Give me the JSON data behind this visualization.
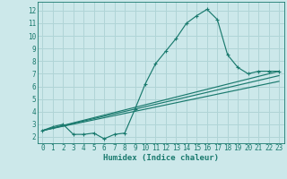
{
  "xlabel": "Humidex (Indice chaleur)",
  "bg_color": "#cce8ea",
  "grid_color": "#b0d4d6",
  "line_color": "#1a7a6e",
  "xlim": [
    -0.5,
    23.5
  ],
  "ylim": [
    1.5,
    12.7
  ],
  "xticks": [
    0,
    1,
    2,
    3,
    4,
    5,
    6,
    7,
    8,
    9,
    10,
    11,
    12,
    13,
    14,
    15,
    16,
    17,
    18,
    19,
    20,
    21,
    22,
    23
  ],
  "yticks": [
    2,
    3,
    4,
    5,
    6,
    7,
    8,
    9,
    10,
    11,
    12
  ],
  "curve1_x": [
    0,
    1,
    2,
    3,
    4,
    5,
    6,
    7,
    8,
    9,
    10,
    11,
    12,
    13,
    14,
    15,
    16,
    17,
    18,
    19,
    20,
    21,
    22,
    23
  ],
  "curve1_y": [
    2.5,
    2.8,
    3.0,
    2.2,
    2.2,
    2.3,
    1.85,
    2.2,
    2.3,
    4.2,
    6.2,
    7.8,
    8.8,
    9.8,
    11.0,
    11.6,
    12.1,
    11.3,
    8.5,
    7.5,
    7.0,
    7.2,
    7.2,
    7.2
  ],
  "curve2_x": [
    0,
    23
  ],
  "curve2_y": [
    2.5,
    7.2
  ],
  "curve3_x": [
    0,
    23
  ],
  "curve3_y": [
    2.5,
    6.4
  ],
  "curve4_x": [
    0,
    23
  ],
  "curve4_y": [
    2.5,
    6.85
  ]
}
